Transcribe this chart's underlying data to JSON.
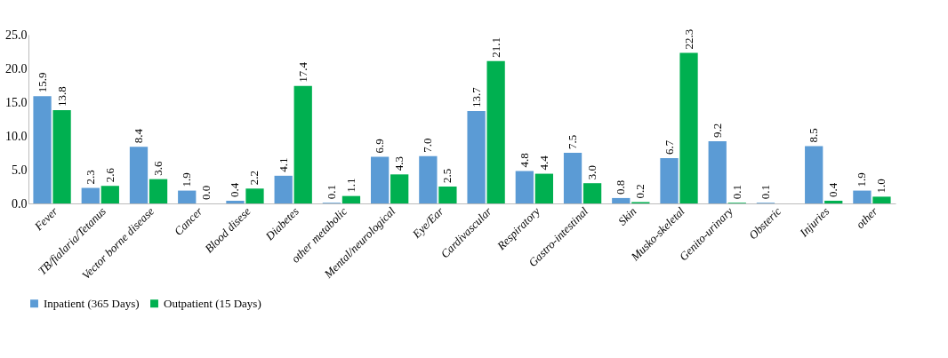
{
  "chart_data": {
    "type": "bar",
    "categories": [
      "Fever",
      "TB/fialaria/Tetanus",
      "Vector borne disease",
      "Cancer",
      "Blood disese",
      "Diabetes",
      "other metabolic",
      "Mental/neurological",
      "Eye/Ear",
      "Cardivascular",
      "Respiratory",
      "Gastro-intestinal",
      "Skin",
      "Musko-skeletal",
      "Genito-urinary",
      "Obsteric",
      "Injuries",
      "other"
    ],
    "series": [
      {
        "name": "Inpatient (365 Days)",
        "color": "#5b9bd5",
        "values": [
          15.9,
          2.3,
          8.4,
          1.9,
          0.4,
          4.1,
          0.1,
          6.9,
          7.0,
          13.7,
          4.8,
          7.5,
          0.8,
          6.7,
          9.2,
          0.1,
          8.5,
          1.9
        ],
        "value_labels": [
          "15.9",
          "2.3",
          "8.4",
          "1.9",
          "0.4",
          "4.1",
          "0.1",
          "6.9",
          "7.0",
          "13.7",
          "4.8",
          "7.5",
          "0.8",
          "6.7",
          "9.2",
          "0.1",
          "8.5",
          "1.9"
        ]
      },
      {
        "name": "Outpatient (15 Days)",
        "color": "#00b050",
        "values": [
          13.8,
          2.6,
          3.6,
          0.0,
          2.2,
          17.4,
          1.1,
          4.3,
          2.5,
          21.1,
          4.4,
          3.0,
          0.2,
          22.3,
          0.1,
          null,
          0.4,
          1.0
        ],
        "value_labels": [
          "13.8",
          "2.6",
          "3.6",
          "0.0",
          "2.2",
          "17.4",
          "1.1",
          "4.3",
          "2.5",
          "21.1",
          "4.4",
          "3.0",
          "0.2",
          "22.3",
          "0.1",
          null,
          "0.4",
          "1.0"
        ]
      }
    ],
    "ylim": [
      0,
      25
    ],
    "yticks": [
      {
        "value": 0,
        "label": "0.0"
      },
      {
        "value": 5,
        "label": "5.0"
      },
      {
        "value": 10,
        "label": "10.0"
      },
      {
        "value": 15,
        "label": "15.0"
      },
      {
        "value": 20,
        "label": "20.0"
      },
      {
        "value": 25,
        "label": "25.0"
      }
    ],
    "legend": "bottom",
    "grid": false
  }
}
